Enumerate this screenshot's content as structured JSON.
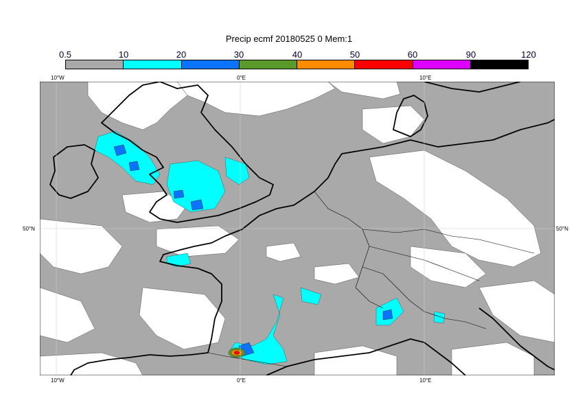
{
  "title": "Precip ecmf 20180525 0 Mem:1",
  "colorbar": {
    "labels": [
      "0.5",
      "10",
      "20",
      "30",
      "40",
      "50",
      "60",
      "90",
      "120"
    ],
    "colors": [
      "#a9a9a9",
      "#00ffff",
      "#0a74ff",
      "#5a9a2a",
      "#ff8c00",
      "#ff0000",
      "#dd00ff",
      "#000000"
    ]
  },
  "axes": {
    "lon_top": [
      "10°W",
      "0°E",
      "10°E"
    ],
    "lon_bottom": [
      "10°W",
      "0°E",
      "10°E"
    ],
    "lat_left": [
      "50°N"
    ],
    "lat_right": [
      "50°N"
    ]
  },
  "map_colors": {
    "background": "#ffffff",
    "precip_light": "#a9a9a9",
    "precip_10": "#00ffff",
    "precip_20": "#0a74ff",
    "coast": "#000000",
    "grid": "#cccccc"
  }
}
